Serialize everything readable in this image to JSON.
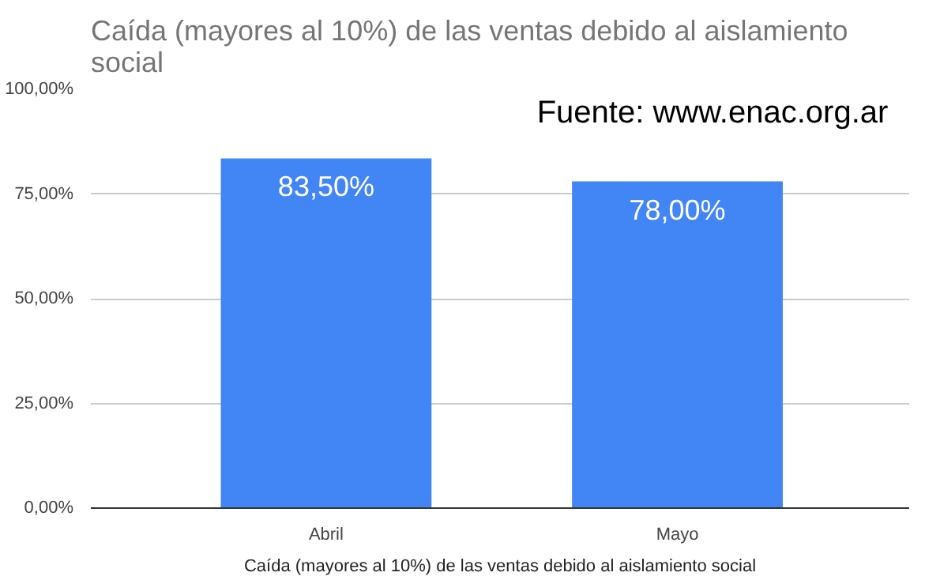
{
  "chart_data": {
    "type": "bar",
    "title": "Caída (mayores al 10%) de las ventas debido al aislamiento social",
    "xlabel": "Caída (mayores al 10%) de las ventas debido al aislamiento social",
    "categories": [
      "Abril",
      "Mayo"
    ],
    "values": [
      83.5,
      78.0
    ],
    "value_labels": [
      "83,50%",
      "78,00%"
    ],
    "color": "#4285f4",
    "ylim": [
      0,
      100
    ],
    "yticks": [
      {
        "value": 0,
        "label": "0,00%"
      },
      {
        "value": 25,
        "label": "25,00%"
      },
      {
        "value": 50,
        "label": "50,00%"
      },
      {
        "value": 75,
        "label": "75,00%"
      },
      {
        "value": 100,
        "label": "100,00%"
      }
    ],
    "grid": "y",
    "annotations": [
      "Fuente: www.enac.org.ar"
    ]
  }
}
